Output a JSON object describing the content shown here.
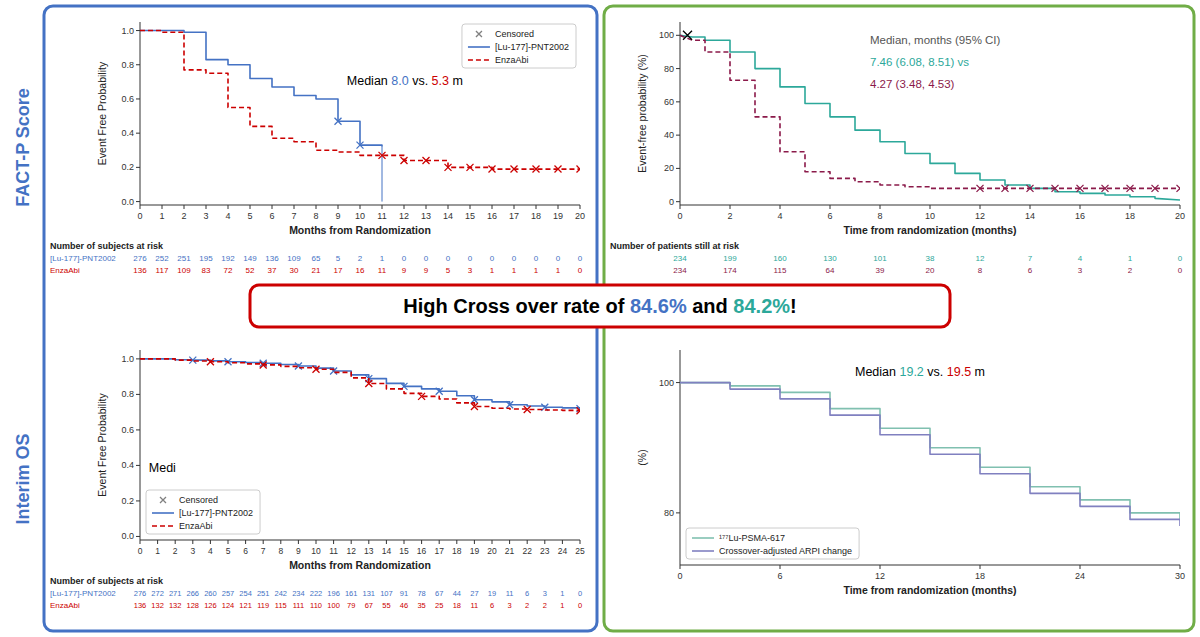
{
  "chart_data": [
    {
      "type": "line",
      "row_label": {
        "text": "FACT-P Score",
        "color": "#4472C4"
      },
      "panel_color": "#4472C4",
      "x_label": "Months from Randomization",
      "y_label": "Event Free Probability",
      "xlim": [
        0,
        20
      ],
      "ylim": [
        -0.02,
        1.05
      ],
      "xticks": [
        0,
        1,
        2,
        3,
        4,
        5,
        6,
        7,
        8,
        9,
        10,
        11,
        12,
        13,
        14,
        15,
        16,
        17,
        18,
        19,
        20
      ],
      "yticks": [
        {
          "value": 0.0,
          "label": "0.0"
        },
        0.2,
        0.4,
        0.6,
        0.8,
        {
          "value": 1.0,
          "label": "1.0"
        }
      ],
      "legend": "upper right",
      "censored_legend": {
        "name": "Censored",
        "color": "#808080",
        "marker": "x"
      },
      "series": [
        {
          "name": "[Lu-177]-PNT2002",
          "color": "#4472C4",
          "line_style": "solid",
          "x": [
            0,
            1,
            2,
            2,
            3,
            3,
            4,
            4,
            5,
            5,
            6,
            6,
            7,
            7,
            8,
            8,
            9,
            9,
            10,
            10,
            11,
            11
          ],
          "values": [
            1.0,
            1.0,
            1.0,
            0.99,
            0.99,
            0.83,
            0.83,
            0.8,
            0.8,
            0.72,
            0.72,
            0.67,
            0.67,
            0.62,
            0.62,
            0.6,
            0.6,
            0.47,
            0.47,
            0.33,
            0.33,
            0.32
          ],
          "censored": {
            "marker": "x",
            "x": [
              9,
              10
            ],
            "values": [
              0.47,
              0.33
            ]
          },
          "vline": {
            "x": 11,
            "values": [
              0.32,
              0.0
            ]
          }
        },
        {
          "name": "EnzaAbi",
          "color": "#CC0000",
          "line_style": "dashed",
          "x": [
            0,
            1,
            1,
            2,
            2,
            3,
            3,
            4,
            4,
            5,
            5,
            6,
            6,
            7,
            7,
            8,
            8,
            9,
            9,
            10,
            10,
            11,
            11,
            12,
            12,
            13,
            13,
            14,
            14,
            15,
            15,
            16,
            16,
            17,
            17,
            18,
            18,
            19,
            19,
            20
          ],
          "values": [
            1.0,
            1.0,
            0.99,
            0.99,
            0.77,
            0.77,
            0.75,
            0.75,
            0.55,
            0.55,
            0.44,
            0.44,
            0.37,
            0.37,
            0.35,
            0.35,
            0.3,
            0.3,
            0.29,
            0.29,
            0.27,
            0.27,
            0.27,
            0.27,
            0.24,
            0.24,
            0.24,
            0.24,
            0.2,
            0.2,
            0.2,
            0.2,
            0.19,
            0.19,
            0.19,
            0.19,
            0.19,
            0.19,
            0.19,
            0.19
          ],
          "censored": {
            "marker": "x",
            "x": [
              11,
              12,
              13,
              14,
              15,
              16,
              17,
              18,
              19,
              20
            ],
            "values": [
              0.27,
              0.24,
              0.24,
              0.2,
              0.2,
              0.19,
              0.19,
              0.19,
              0.19,
              0.19
            ]
          }
        }
      ],
      "annotations": [
        {
          "parts": [
            {
              "text": "Median ",
              "color": "#000000"
            },
            {
              "text": "8.0",
              "color": "#4472C4"
            },
            {
              "text": " vs. ",
              "color": "#000000"
            },
            {
              "text": "5.3",
              "color": "#CC0000"
            },
            {
              "text": " m",
              "color": "#000000"
            }
          ]
        }
      ],
      "at_risk": {
        "label": "Number of subjects at risk",
        "rows": [
          {
            "name": "[Lu-177]-PNT2002",
            "color": "#4472C4",
            "values": [
              276,
              252,
              251,
              195,
              192,
              149,
              136,
              109,
              65,
              5,
              2,
              1,
              0,
              0,
              0,
              0,
              0,
              0,
              0,
              0,
              0
            ]
          },
          {
            "name": "EnzaAbi",
            "color": "#CC0000",
            "values": [
              136,
              117,
              109,
              83,
              72,
              52,
              37,
              30,
              21,
              17,
              16,
              11,
              9,
              9,
              5,
              3,
              1,
              1,
              1,
              1,
              0
            ]
          }
        ]
      }
    },
    {
      "type": "step",
      "row_label": {
        "text": "Interim OS",
        "color": "#4472C4"
      },
      "panel_color": "#4472C4",
      "x_label": "Months from Randomization",
      "y_label": "Event Free Probability",
      "xlim": [
        0,
        25
      ],
      "ylim": [
        -0.02,
        1.05
      ],
      "xticks": [
        0,
        1,
        2,
        3,
        4,
        5,
        6,
        7,
        8,
        9,
        10,
        11,
        12,
        13,
        14,
        15,
        16,
        17,
        18,
        19,
        20,
        21,
        22,
        23,
        24,
        25
      ],
      "yticks": [
        {
          "value": 0.0,
          "label": "0.0"
        },
        0.2,
        0.4,
        0.6,
        0.8,
        {
          "value": 1.0,
          "label": "1.0"
        }
      ],
      "legend": "lower left",
      "censored_legend": {
        "name": "Censored",
        "color": "#808080",
        "marker": "x"
      },
      "series": [
        {
          "name": "[Lu-177]-PNT2002",
          "color": "#4472C4",
          "line_style": "solid",
          "x": [
            0,
            1,
            2,
            3,
            4,
            5,
            6,
            7,
            8,
            9,
            10,
            11,
            12,
            13,
            14,
            15,
            16,
            17,
            18,
            19,
            20,
            21,
            22,
            23,
            24,
            25
          ],
          "values": [
            1.0,
            1.0,
            0.995,
            0.993,
            0.989,
            0.984,
            0.98,
            0.975,
            0.968,
            0.96,
            0.948,
            0.932,
            0.91,
            0.889,
            0.862,
            0.845,
            0.831,
            0.818,
            0.792,
            0.77,
            0.758,
            0.742,
            0.735,
            0.728,
            0.724,
            0.72
          ],
          "censored": {
            "marker": "x",
            "x": [
              3,
              5,
              7,
              9,
              11,
              13,
              15,
              17,
              19,
              21,
              23,
              25
            ],
            "values": [
              0.993,
              0.984,
              0.975,
              0.96,
              0.932,
              0.889,
              0.845,
              0.818,
              0.77,
              0.742,
              0.728,
              0.72
            ]
          }
        },
        {
          "name": "EnzaAbi",
          "color": "#CC0000",
          "line_style": "dashed",
          "x": [
            0,
            1,
            2,
            3,
            4,
            5,
            6,
            7,
            8,
            9,
            10,
            11,
            12,
            13,
            14,
            15,
            16,
            17,
            18,
            19,
            20,
            21,
            22,
            23,
            24,
            25
          ],
          "values": [
            1.0,
            1.0,
            0.993,
            0.988,
            0.984,
            0.978,
            0.972,
            0.966,
            0.958,
            0.95,
            0.942,
            0.924,
            0.893,
            0.861,
            0.831,
            0.806,
            0.789,
            0.774,
            0.752,
            0.732,
            0.722,
            0.718,
            0.715,
            0.712,
            0.71,
            0.708
          ],
          "censored": {
            "marker": "x",
            "x": [
              4,
              7,
              10,
              13,
              16,
              19,
              22,
              25
            ],
            "values": [
              0.984,
              0.966,
              0.942,
              0.861,
              0.789,
              0.732,
              0.715,
              0.708
            ]
          }
        }
      ],
      "annotations": [
        {
          "parts": [
            {
              "text": "Medi",
              "color": "#000000"
            }
          ]
        }
      ],
      "at_risk": {
        "label": "Number of subjects at risk",
        "rows": [
          {
            "name": "[Lu-177]-PNT2002",
            "color": "#4472C4",
            "values": [
              276,
              272,
              271,
              266,
              260,
              257,
              254,
              251,
              242,
              234,
              222,
              196,
              161,
              131,
              107,
              91,
              78,
              67,
              44,
              27,
              19,
              11,
              6,
              3,
              1,
              0
            ]
          },
          {
            "name": "EnzaAbi",
            "color": "#CC0000",
            "values": [
              136,
              132,
              132,
              128,
              126,
              124,
              121,
              119,
              115,
              111,
              110,
              100,
              79,
              67,
              55,
              46,
              35,
              25,
              18,
              11,
              6,
              3,
              2,
              2,
              1,
              0
            ]
          }
        ]
      }
    },
    {
      "type": "line",
      "panel_color": "#70AD47",
      "x_label": "Time from randomization (months)",
      "y_label": "Event-free probability (%)",
      "xlim": [
        0,
        20
      ],
      "ylim": [
        -2,
        108
      ],
      "xticks": [
        0,
        2,
        4,
        6,
        8,
        10,
        12,
        14,
        16,
        18,
        20
      ],
      "yticks": [
        0,
        20,
        40,
        60,
        80,
        100
      ],
      "series": [
        {
          "color": "#2CA89A",
          "line_style": "solid",
          "x": [
            0,
            0.5,
            1,
            1,
            2,
            2,
            3,
            3,
            4,
            4,
            5,
            5,
            6,
            6,
            7,
            7,
            8,
            8,
            9,
            9,
            10,
            10,
            11,
            11,
            12,
            12,
            13,
            13,
            14,
            14,
            15,
            15,
            16,
            16,
            17,
            17,
            18,
            18,
            19,
            19,
            20
          ],
          "values": [
            100,
            99,
            99,
            97,
            97,
            90,
            90,
            80,
            80,
            69,
            69,
            59,
            59,
            51,
            51,
            43,
            43,
            36,
            36,
            29,
            29,
            23,
            23,
            17,
            17,
            13,
            13,
            10,
            10,
            8,
            8,
            6,
            6,
            5,
            5,
            4,
            4,
            3,
            3,
            2,
            1
          ]
        },
        {
          "color": "#8B1A4A",
          "line_style": "dashed",
          "x": [
            0,
            0.5,
            1,
            1,
            2,
            2,
            3,
            3,
            4,
            4,
            5,
            5,
            6,
            6,
            7,
            7,
            8,
            8,
            9,
            9,
            10,
            10,
            11,
            11,
            12,
            12,
            13,
            13,
            14,
            14,
            15,
            15,
            16,
            16,
            17,
            17,
            18,
            18,
            19,
            19,
            20
          ],
          "values": [
            100,
            97,
            97,
            90,
            90,
            73,
            73,
            51,
            51,
            30,
            30,
            18,
            18,
            14,
            14,
            12,
            12,
            10,
            10,
            9,
            9,
            8,
            8,
            8,
            8,
            8,
            8,
            8,
            8,
            8,
            8,
            8,
            8,
            8,
            8,
            8,
            8,
            8,
            8,
            8,
            8
          ],
          "censored": {
            "marker": "x",
            "x": [
              12,
              13,
              14,
              15,
              16,
              17,
              18,
              19,
              20
            ],
            "values": [
              8,
              8,
              8,
              8,
              8,
              8,
              8,
              8,
              8
            ]
          }
        },
        {
          "type": "scatter",
          "color": "#000000",
          "marker": "x",
          "x": [
            0.3
          ],
          "values": [
            100
          ]
        }
      ],
      "annotations": [
        {
          "parts": [
            {
              "text": "Median, months (95% CI)",
              "color": "#555555"
            }
          ]
        },
        {
          "parts": [
            {
              "text": "7.46 (6.08, 8.51) vs",
              "color": "#2CA89A"
            }
          ]
        },
        {
          "parts": [
            {
              "text": "4.27 (3.48, 4.53)",
              "color": "#8B1A4A"
            }
          ]
        }
      ],
      "at_risk": {
        "label": "Number of patients still at risk",
        "rows": [
          {
            "color": "#2CA89A",
            "values": [
              234,
              199,
              160,
              130,
              101,
              38,
              12,
              7,
              4,
              1,
              0
            ]
          },
          {
            "color": "#8B1A4A",
            "values": [
              234,
              174,
              115,
              64,
              39,
              20,
              8,
              6,
              3,
              2,
              0
            ]
          }
        ]
      }
    },
    {
      "type": "step",
      "panel_color": "#70AD47",
      "x_label": "Time from randomization (months)",
      "y_label": "(%)",
      "xlim": [
        0,
        30
      ],
      "ylim": [
        72,
        105
      ],
      "xticks": [
        0,
        6,
        12,
        18,
        24,
        30
      ],
      "yticks": [
        80,
        100
      ],
      "legend": "lower left",
      "series": [
        {
          "name": "¹⁷⁷Lu-PSMA-617",
          "color": "#80C0B0",
          "line_style": "solid",
          "x": [
            0,
            3,
            6,
            9,
            12,
            15,
            18,
            21,
            24,
            27,
            30
          ],
          "values": [
            100,
            99.5,
            98.5,
            96,
            93,
            90,
            87,
            84,
            82,
            80,
            79
          ]
        },
        {
          "name": "Crossover-adjusted ARPI change",
          "color": "#8080C0",
          "line_style": "solid",
          "x": [
            0,
            3,
            6,
            9,
            12,
            15,
            18,
            21,
            24,
            27,
            30
          ],
          "values": [
            100,
            99,
            97.5,
            95,
            92,
            89,
            86,
            83,
            81,
            79,
            78
          ]
        }
      ],
      "annotations": [
        {
          "parts": [
            {
              "text": "Median ",
              "color": "#000000"
            },
            {
              "text": "19.2",
              "color": "#2CA89A"
            },
            {
              "text": " vs. ",
              "color": "#000000"
            },
            {
              "text": "19.5",
              "color": "#CC0000"
            },
            {
              "text": " m",
              "color": "#000000"
            }
          ]
        }
      ]
    }
  ],
  "callout": {
    "parts": [
      {
        "text": "High Cross over rate of ",
        "color": "#000000"
      },
      {
        "text": "84.6%",
        "color": "#4472C4"
      },
      {
        "text": " and ",
        "color": "#000000"
      },
      {
        "text": "84.2%",
        "color": "#2CA89A"
      },
      {
        "text": "!",
        "color": "#000000"
      }
    ],
    "border_color": "#CC0000",
    "bg_color": "#FFFFFF"
  }
}
